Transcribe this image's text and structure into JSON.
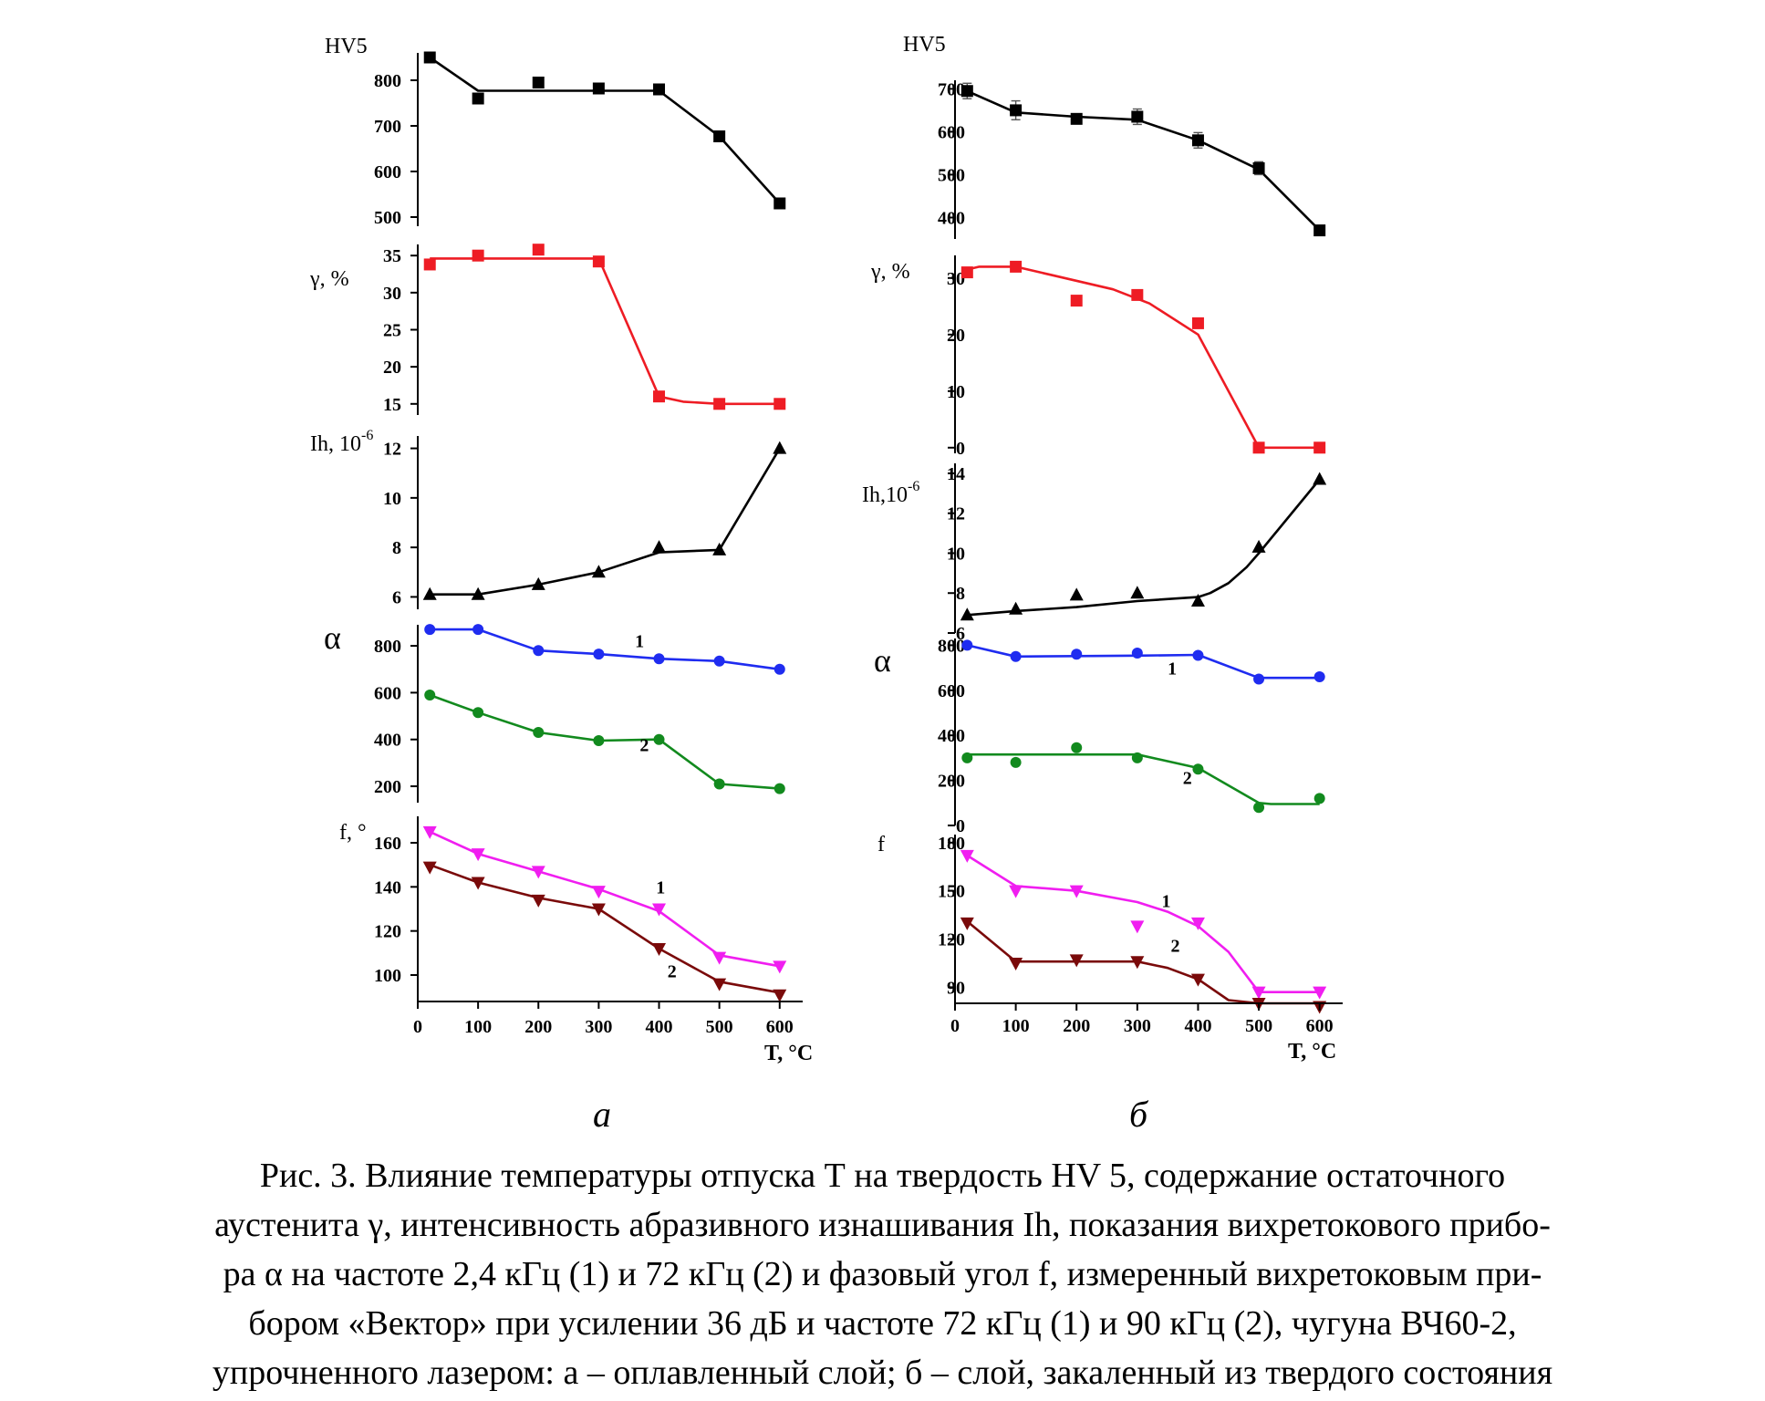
{
  "figure": {
    "panel_labels": [
      "а",
      "б"
    ],
    "caption_lines": [
      "Рис. 3. Влияние температуры отпуска Т на твердость HV 5, содержание остаточного",
      "аустенита γ, интенсивность абразивного изнашивания Ih, показания вихретокового прибо-",
      "ра α на частоте 2,4 кГц (1) и 72 кГц (2) и фазовый угол f, измеренный вихретоковым при-",
      "бором «Вектор» при усилении 36 дБ и частоте 72 кГц (1) и 90 кГц (2), чугуна ВЧ60-2,",
      "упрочненного лазером: а – оплавленный слой; б – слой, закаленный из твердого состояния"
    ]
  },
  "colors": {
    "black": "#000000",
    "red": "#ee1c24",
    "blue": "#1f2cf0",
    "green": "#128a1e",
    "magenta": "#f01ef0",
    "brown": "#7a0a0a"
  },
  "chart_data": [
    {
      "panel": "а",
      "type": "line",
      "xlabel": "T, °C",
      "x_ticks": [
        0,
        100,
        200,
        300,
        400,
        500,
        600
      ],
      "xlim": [
        0,
        620
      ],
      "subplots": [
        {
          "ylabel": "HV5",
          "ylim": [
            480,
            860
          ],
          "y_ticks": [
            500,
            600,
            700,
            800
          ],
          "series": [
            {
              "color": "black",
              "marker": "square",
              "x": [
                20,
                100,
                200,
                300,
                400,
                500,
                600
              ],
              "y": [
                850,
                760,
                795,
                782,
                780,
                677,
                530
              ],
              "line_x": [
                20,
                100,
                200,
                300,
                400,
                500,
                600
              ],
              "line_y": [
                850,
                777,
                777,
                777,
                777,
                677,
                530
              ]
            }
          ]
        },
        {
          "ylabel": "γ, %",
          "ylim": [
            13.5,
            36.5
          ],
          "y_ticks": [
            15,
            20,
            25,
            30,
            35
          ],
          "series": [
            {
              "color": "red",
              "marker": "square",
              "x": [
                20,
                100,
                200,
                300,
                400,
                500,
                600
              ],
              "y": [
                33.8,
                35.0,
                35.8,
                34.2,
                16.0,
                15.0,
                15.0
              ],
              "line_x": [
                20,
                100,
                200,
                300,
                400,
                440,
                500,
                600
              ],
              "line_y": [
                34.6,
                34.6,
                34.6,
                34.6,
                16.0,
                15.3,
                15.0,
                15.0
              ]
            }
          ]
        },
        {
          "ylabel": "Ih, 10",
          "ylabel_exponent": "-6",
          "ylim": [
            5.5,
            12.5
          ],
          "y_ticks": [
            6,
            8,
            10,
            12
          ],
          "series": [
            {
              "color": "black",
              "marker": "triangle-up",
              "x": [
                20,
                100,
                200,
                300,
                400,
                500,
                600
              ],
              "y": [
                6.1,
                6.1,
                6.5,
                7.0,
                8.0,
                7.9,
                12.0
              ],
              "line_x": [
                20,
                100,
                200,
                300,
                400,
                500,
                600
              ],
              "line_y": [
                6.1,
                6.1,
                6.5,
                7.0,
                7.8,
                7.9,
                12.0
              ]
            }
          ]
        },
        {
          "ylabel": "α",
          "ylim": [
            130,
            890
          ],
          "y_ticks": [
            200,
            400,
            600,
            800
          ],
          "series": [
            {
              "name": "1",
              "color": "blue",
              "marker": "circle",
              "x": [
                20,
                100,
                200,
                300,
                400,
                500,
                600
              ],
              "y": [
                870,
                870,
                780,
                765,
                745,
                735,
                700
              ],
              "line_x": [
                20,
                100,
                200,
                300,
                400,
                500,
                600
              ],
              "line_y": [
                870,
                870,
                780,
                765,
                745,
                735,
                700
              ]
            },
            {
              "name": "2",
              "color": "green",
              "marker": "circle",
              "x": [
                20,
                100,
                200,
                300,
                400,
                500,
                600
              ],
              "y": [
                590,
                515,
                430,
                395,
                400,
                210,
                190
              ],
              "line_x": [
                20,
                100,
                200,
                300,
                400,
                500,
                600
              ],
              "line_y": [
                590,
                515,
                430,
                395,
                400,
                210,
                190
              ]
            }
          ],
          "curve_labels": [
            {
              "text": "1",
              "x": 360,
              "y": 795,
              "color": "black"
            },
            {
              "text": "2",
              "x": 368,
              "y": 350,
              "color": "black"
            }
          ]
        },
        {
          "ylabel": "f, °",
          "ylim": [
            88,
            172
          ],
          "y_ticks": [
            100,
            120,
            140,
            160
          ],
          "series": [
            {
              "name": "1",
              "color": "magenta",
              "marker": "triangle-down",
              "x": [
                20,
                100,
                200,
                300,
                400,
                500,
                600
              ],
              "y": [
                165,
                155,
                147,
                138,
                130,
                108,
                104
              ],
              "line_x": [
                20,
                100,
                200,
                300,
                400,
                500,
                600
              ],
              "line_y": [
                165,
                155,
                147,
                139,
                129,
                109,
                104
              ]
            },
            {
              "name": "2",
              "color": "brown",
              "marker": "triangle-down",
              "x": [
                20,
                100,
                200,
                300,
                400,
                500,
                600
              ],
              "y": [
                149,
                142,
                134,
                130,
                112,
                96,
                91
              ],
              "line_x": [
                20,
                100,
                200,
                300,
                400,
                500,
                600
              ],
              "line_y": [
                150,
                142,
                135,
                130,
                112,
                97,
                92
              ]
            }
          ],
          "curve_labels": [
            {
              "text": "1",
              "x": 395,
              "y": 137,
              "color": "black"
            },
            {
              "text": "2",
              "x": 414,
              "y": 99,
              "color": "black"
            }
          ]
        }
      ]
    },
    {
      "panel": "б",
      "type": "line",
      "xlabel": "T, °C",
      "x_ticks": [
        0,
        100,
        200,
        300,
        400,
        500,
        600
      ],
      "xlim": [
        0,
        620
      ],
      "subplots": [
        {
          "ylabel": "HV5",
          "ylim": [
            350,
            720
          ],
          "y_ticks": [
            400,
            500,
            600,
            700
          ],
          "error_bars": true,
          "series": [
            {
              "color": "black",
              "marker": "square",
              "x": [
                20,
                100,
                200,
                300,
                400,
                500,
                600
              ],
              "y": [
                695,
                650,
                630,
                635,
                580,
                515,
                370
              ],
              "yerr": [
                18,
                22,
                10,
                18,
                18,
                15,
                6
              ],
              "line_x": [
                20,
                100,
                200,
                300,
                400,
                500,
                600
              ],
              "line_y": [
                695,
                645,
                635,
                628,
                580,
                512,
                370
              ]
            }
          ]
        },
        {
          "ylabel": "γ, %",
          "ylim": [
            -1,
            34
          ],
          "y_ticks": [
            0,
            10,
            20,
            30
          ],
          "series": [
            {
              "color": "red",
              "marker": "square",
              "x": [
                20,
                100,
                200,
                300,
                400,
                500,
                600
              ],
              "y": [
                31,
                32,
                26,
                27,
                22,
                0,
                0
              ],
              "line_x": [
                20,
                40,
                100,
                160,
                260,
                320,
                400,
                500,
                600
              ],
              "line_y": [
                31.5,
                32,
                32,
                30.5,
                28,
                25.5,
                20,
                0,
                0
              ]
            }
          ]
        },
        {
          "ylabel": "Ih,10",
          "ylabel_exponent": "-6",
          "ylim": [
            6,
            14.5
          ],
          "y_ticks": [
            6,
            8,
            10,
            12,
            14
          ],
          "series": [
            {
              "color": "black",
              "marker": "triangle-up",
              "x": [
                20,
                100,
                200,
                300,
                400,
                500,
                600
              ],
              "y": [
                6.9,
                7.2,
                7.9,
                8.0,
                7.6,
                10.3,
                13.7
              ],
              "line_x": [
                20,
                100,
                200,
                300,
                400,
                420,
                450,
                480,
                500,
                600
              ],
              "line_y": [
                6.9,
                7.1,
                7.3,
                7.6,
                7.8,
                8.0,
                8.5,
                9.3,
                10.0,
                13.7
              ]
            }
          ]
        },
        {
          "ylabel": "α",
          "ylim": [
            0,
            830
          ],
          "y_ticks": [
            0,
            200,
            400,
            600,
            800
          ],
          "series": [
            {
              "name": "1",
              "color": "blue",
              "marker": "circle",
              "x": [
                20,
                100,
                200,
                300,
                400,
                500,
                600
              ],
              "y": [
                800,
                750,
                760,
                765,
                755,
                650,
                660
              ],
              "line_x": [
                20,
                100,
                200,
                300,
                400,
                500,
                600
              ],
              "line_y": [
                800,
                750,
                752,
                754,
                757,
                655,
                655
              ]
            },
            {
              "name": "2",
              "color": "green",
              "marker": "circle",
              "x": [
                20,
                100,
                200,
                300,
                400,
                500,
                600
              ],
              "y": [
                300,
                280,
                345,
                300,
                250,
                80,
                120
              ],
              "line_x": [
                20,
                100,
                200,
                300,
                400,
                500,
                520,
                600
              ],
              "line_y": [
                315,
                315,
                315,
                315,
                255,
                100,
                95,
                95
              ]
            }
          ],
          "curve_labels": [
            {
              "text": "1",
              "x": 350,
              "y": 670,
              "color": "black"
            },
            {
              "text": "2",
              "x": 375,
              "y": 185,
              "color": "black"
            }
          ]
        },
        {
          "ylabel": "f",
          "ylim": [
            80,
            185
          ],
          "y_ticks": [
            90,
            120,
            150,
            180
          ],
          "series": [
            {
              "name": "1",
              "color": "magenta",
              "marker": "triangle-down",
              "x": [
                20,
                100,
                200,
                300,
                400,
                500,
                600
              ],
              "y": [
                172,
                150,
                150,
                128,
                130,
                87,
                87
              ],
              "line_x": [
                20,
                100,
                200,
                300,
                350,
                400,
                450,
                500,
                600
              ],
              "line_y": [
                172,
                153,
                150,
                143,
                137,
                128,
                112,
                87,
                87
              ]
            },
            {
              "name": "2",
              "color": "brown",
              "marker": "triangle-down",
              "x": [
                20,
                100,
                200,
                300,
                400,
                500,
                600
              ],
              "y": [
                130,
                105,
                107,
                106,
                95,
                80,
                78
              ],
              "line_x": [
                20,
                100,
                200,
                300,
                350,
                400,
                450,
                500,
                600
              ],
              "line_y": [
                131,
                106,
                106,
                106,
                102,
                95,
                82,
                80,
                80
              ]
            }
          ],
          "curve_labels": [
            {
              "text": "1",
              "x": 340,
              "y": 140,
              "color": "black"
            },
            {
              "text": "2",
              "x": 355,
              "y": 112,
              "color": "black"
            }
          ]
        }
      ]
    }
  ]
}
